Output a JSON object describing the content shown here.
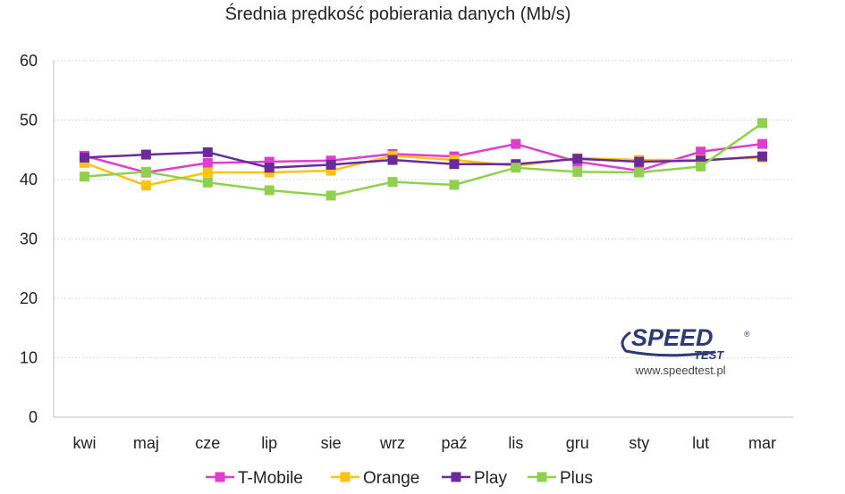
{
  "chart_data": {
    "type": "line",
    "title": "Średnia prędkość pobierania danych (Mb/s)",
    "xlabel": "",
    "ylabel": "",
    "categories": [
      "kwi",
      "maj",
      "cze",
      "lip",
      "sie",
      "wrz",
      "paź",
      "lis",
      "gru",
      "sty",
      "lut",
      "mar"
    ],
    "ylim": [
      0,
      60
    ],
    "yticks": [
      0,
      10,
      20,
      30,
      40,
      50,
      60
    ],
    "grid": true,
    "legend_position": "bottom",
    "series": [
      {
        "name": "T-Mobile",
        "color": "#e03ccf",
        "values": [
          44.0,
          41.2,
          42.8,
          43.0,
          43.2,
          44.3,
          43.9,
          46.0,
          43.0,
          41.5,
          44.7,
          46.0
        ]
      },
      {
        "name": "Orange",
        "color": "#ffc20e",
        "values": [
          42.8,
          39.0,
          41.2,
          41.2,
          41.5,
          44.0,
          43.3,
          42.3,
          43.6,
          43.3,
          43.3,
          43.7
        ]
      },
      {
        "name": "Play",
        "color": "#6a2a9c",
        "values": [
          43.7,
          44.2,
          44.6,
          42.0,
          42.5,
          43.3,
          42.6,
          42.6,
          43.5,
          43.0,
          43.2,
          43.9
        ]
      },
      {
        "name": "Plus",
        "color": "#8fd14f",
        "values": [
          40.5,
          41.3,
          39.5,
          38.2,
          37.3,
          39.6,
          39.1,
          42.0,
          41.3,
          41.2,
          42.2,
          49.5
        ]
      }
    ]
  },
  "logo": {
    "name": "SPEED",
    "sub": "TEST",
    "mark": "®",
    "url": "www.speedtest.pl"
  }
}
